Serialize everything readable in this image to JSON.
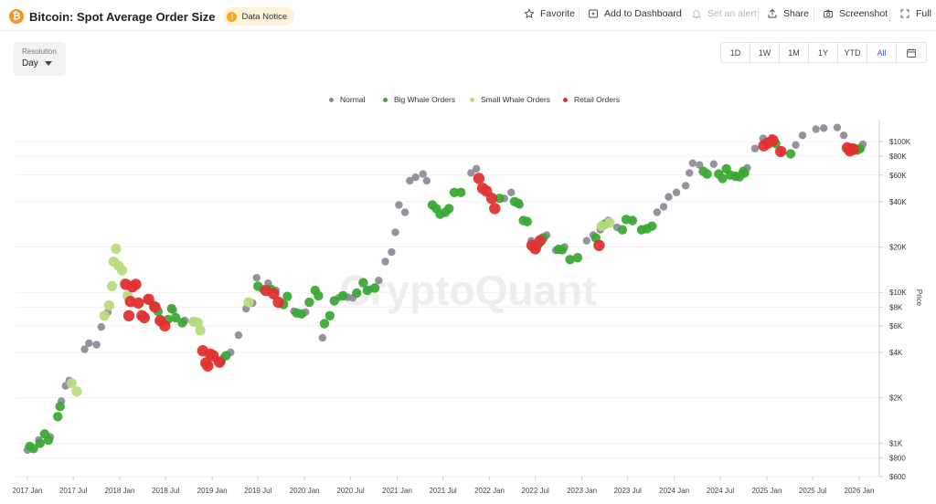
{
  "header": {
    "coin_icon": "bitcoin-icon",
    "coin_symbol": "₿",
    "title": "Bitcoin: Spot Average Order Size",
    "notice_label": "Data Notice",
    "notice_icon": "exclamation-icon"
  },
  "toolbar": {
    "favorite": "Favorite",
    "add_to_dashboard": "Add to Dashboard",
    "set_alert": "Set an alert",
    "share": "Share",
    "screenshot": "Screenshot",
    "full": "Full"
  },
  "resolution": {
    "label": "Resolution",
    "value": "Day"
  },
  "ranges": [
    "1D",
    "1W",
    "1M",
    "1Y",
    "YTD",
    "All"
  ],
  "active_range": "All",
  "watermark": "CryptoQuant",
  "colors": {
    "normal": "#8e8c99",
    "big_whale": "#3aaa35",
    "small_whale": "#b5dc7c",
    "retail": "#e03131",
    "accent": "#4a5bd4",
    "bitcoin": "#f7931a"
  },
  "chart_data": {
    "type": "scatter",
    "title": "Bitcoin: Spot Average Order Size",
    "xlabel": "",
    "ylabel": "Price",
    "y_scale": "log",
    "ylim": [
      600,
      140000
    ],
    "legend_position": "top-center",
    "x_tick_labels": [
      "2017 Jan",
      "2017 Jul",
      "2018 Jan",
      "2018 Jul",
      "2019 Jan",
      "2019 Jul",
      "2020 Jan",
      "2020 Jul",
      "2021 Jan",
      "2021 Jul",
      "2022 Jan",
      "2022 Jul",
      "2023 Jan",
      "2023 Jul",
      "2024 Jan",
      "2024 Jul",
      "2025 Jan",
      "2025 Jul",
      "2026 Jan"
    ],
    "y_ticks": [
      {
        "value": 600,
        "label": "$600"
      },
      {
        "value": 800,
        "label": "$800"
      },
      {
        "value": 1000,
        "label": "$1K"
      },
      {
        "value": 2000,
        "label": "$2K"
      },
      {
        "value": 4000,
        "label": "$4K"
      },
      {
        "value": 6000,
        "label": "$6K"
      },
      {
        "value": 8000,
        "label": "$8K"
      },
      {
        "value": 10000,
        "label": "$10K"
      },
      {
        "value": 20000,
        "label": "$20K"
      },
      {
        "value": 40000,
        "label": "$40K"
      },
      {
        "value": 60000,
        "label": "$60K"
      },
      {
        "value": 80000,
        "label": "$80K"
      },
      {
        "value": 100000,
        "label": "$100K"
      }
    ],
    "grid": true,
    "series": [
      {
        "name": "Normal",
        "color": "#8e8c99",
        "points": [
          [
            "2017-01-01",
            900
          ],
          [
            "2017-02-15",
            1050
          ],
          [
            "2017-04-01",
            1100
          ],
          [
            "2017-05-15",
            1900
          ],
          [
            "2017-06-01",
            2400
          ],
          [
            "2017-06-15",
            2600
          ],
          [
            "2017-08-15",
            4200
          ],
          [
            "2017-09-01",
            4600
          ],
          [
            "2017-10-01",
            4500
          ],
          [
            "2017-10-20",
            5900
          ],
          [
            "2017-11-15",
            7400
          ],
          [
            "2018-04-20",
            8900
          ],
          [
            "2018-06-15",
            6500
          ],
          [
            "2018-08-01",
            7600
          ],
          [
            "2018-09-15",
            6500
          ],
          [
            "2018-10-15",
            6400
          ],
          [
            "2019-01-15",
            3600
          ],
          [
            "2019-02-15",
            3700
          ],
          [
            "2019-03-15",
            4000
          ],
          [
            "2019-04-15",
            5200
          ],
          [
            "2019-05-15",
            7800
          ],
          [
            "2019-06-10",
            8500
          ],
          [
            "2019-06-26",
            12500
          ],
          [
            "2019-07-15",
            10600
          ],
          [
            "2019-08-10",
            11500
          ],
          [
            "2019-09-10",
            10300
          ],
          [
            "2019-11-20",
            7500
          ],
          [
            "2020-01-05",
            7400
          ],
          [
            "2020-03-12",
            5000
          ],
          [
            "2020-05-15",
            9200
          ],
          [
            "2020-06-20",
            9300
          ],
          [
            "2020-07-10",
            9200
          ],
          [
            "2020-09-15",
            10500
          ],
          [
            "2020-10-20",
            12000
          ],
          [
            "2020-11-15",
            16000
          ],
          [
            "2020-12-10",
            18500
          ],
          [
            "2020-12-25",
            25000
          ],
          [
            "2021-01-08",
            38000
          ],
          [
            "2021-02-01",
            34000
          ],
          [
            "2021-02-20",
            55000
          ],
          [
            "2021-03-15",
            58000
          ],
          [
            "2021-04-13",
            61000
          ],
          [
            "2021-04-28",
            55000
          ],
          [
            "2021-11-10",
            66000
          ],
          [
            "2021-10-20",
            62000
          ],
          [
            "2022-03-01",
            42000
          ],
          [
            "2022-03-28",
            46000
          ],
          [
            "2022-05-01",
            38000
          ],
          [
            "2022-06-15",
            22000
          ],
          [
            "2022-08-15",
            24000
          ],
          [
            "2022-09-20",
            19000
          ],
          [
            "2022-10-25",
            20000
          ],
          [
            "2023-01-20",
            22000
          ],
          [
            "2023-02-15",
            24000
          ],
          [
            "2023-03-15",
            26000
          ],
          [
            "2023-04-15",
            30000
          ],
          [
            "2023-05-20",
            27000
          ],
          [
            "2023-10-25",
            34000
          ],
          [
            "2023-11-20",
            37000
          ],
          [
            "2023-12-10",
            43000
          ],
          [
            "2024-01-10",
            46000
          ],
          [
            "2024-02-15",
            51000
          ],
          [
            "2024-03-01",
            62000
          ],
          [
            "2024-03-14",
            72000
          ],
          [
            "2024-04-10",
            70000
          ],
          [
            "2024-06-05",
            71000
          ],
          [
            "2024-10-15",
            67000
          ],
          [
            "2024-11-15",
            90000
          ],
          [
            "2024-12-17",
            105000
          ],
          [
            "2025-01-21",
            106000
          ],
          [
            "2025-03-01",
            86000
          ],
          [
            "2025-04-25",
            95000
          ],
          [
            "2025-05-22",
            110000
          ],
          [
            "2025-07-14",
            121000
          ],
          [
            "2025-08-14",
            123000
          ],
          [
            "2025-10-06",
            124000
          ],
          [
            "2025-11-01",
            110000
          ],
          [
            "2026-01-15",
            96000
          ]
        ]
      },
      {
        "name": "Big Whale Orders",
        "color": "#3aaa35",
        "points": [
          [
            "2017-01-10",
            950
          ],
          [
            "2017-01-25",
            920
          ],
          [
            "2017-02-20",
            1000
          ],
          [
            "2017-03-10",
            1150
          ],
          [
            "2017-03-25",
            1050
          ],
          [
            "2017-05-01",
            1500
          ],
          [
            "2017-05-10",
            1750
          ],
          [
            "2018-05-15",
            8200
          ],
          [
            "2018-06-01",
            7500
          ],
          [
            "2018-07-10",
            6600
          ],
          [
            "2018-07-25",
            7800
          ],
          [
            "2018-08-10",
            6800
          ],
          [
            "2018-09-05",
            6300
          ],
          [
            "2019-02-05",
            3500
          ],
          [
            "2019-02-25",
            3800
          ],
          [
            "2019-07-01",
            11000
          ],
          [
            "2019-08-20",
            10500
          ],
          [
            "2019-10-10",
            8300
          ],
          [
            "2019-10-25",
            9400
          ],
          [
            "2019-12-01",
            7300
          ],
          [
            "2019-12-20",
            7200
          ],
          [
            "2020-01-20",
            8600
          ],
          [
            "2020-02-12",
            10300
          ],
          [
            "2020-02-25",
            9500
          ],
          [
            "2020-03-20",
            6200
          ],
          [
            "2020-04-10",
            7000
          ],
          [
            "2020-04-28",
            8800
          ],
          [
            "2020-06-01",
            9500
          ],
          [
            "2020-07-25",
            9900
          ],
          [
            "2020-08-20",
            11600
          ],
          [
            "2020-09-05",
            10300
          ],
          [
            "2020-10-05",
            10700
          ],
          [
            "2021-05-20",
            38000
          ],
          [
            "2021-06-05",
            36000
          ],
          [
            "2021-06-20",
            33000
          ],
          [
            "2021-07-10",
            34000
          ],
          [
            "2021-07-25",
            36000
          ],
          [
            "2021-08-15",
            46000
          ],
          [
            "2021-09-10",
            46000
          ],
          [
            "2022-02-10",
            42000
          ],
          [
            "2022-04-10",
            40000
          ],
          [
            "2022-04-25",
            39000
          ],
          [
            "2022-05-15",
            30000
          ],
          [
            "2022-05-30",
            29500
          ],
          [
            "2022-07-10",
            20500
          ],
          [
            "2022-08-01",
            23000
          ],
          [
            "2022-10-01",
            19300
          ],
          [
            "2022-10-15",
            19200
          ],
          [
            "2022-11-15",
            16500
          ],
          [
            "2022-12-15",
            17000
          ],
          [
            "2023-02-25",
            23000
          ],
          [
            "2023-04-01",
            28300
          ],
          [
            "2023-06-10",
            26000
          ],
          [
            "2023-06-25",
            30500
          ],
          [
            "2023-07-20",
            30000
          ],
          [
            "2023-08-25",
            26000
          ],
          [
            "2023-09-15",
            26500
          ],
          [
            "2023-10-05",
            27500
          ],
          [
            "2024-04-25",
            63500
          ],
          [
            "2024-05-10",
            61000
          ],
          [
            "2024-06-25",
            61000
          ],
          [
            "2024-07-10",
            57000
          ],
          [
            "2024-07-25",
            66000
          ],
          [
            "2024-08-10",
            60000
          ],
          [
            "2024-08-30",
            59000
          ],
          [
            "2024-09-15",
            58500
          ],
          [
            "2024-09-30",
            63500
          ],
          [
            "2024-10-05",
            62000
          ],
          [
            "2025-02-05",
            97000
          ],
          [
            "2025-04-05",
            83000
          ],
          [
            "2025-11-20",
            88000
          ],
          [
            "2025-12-05",
            91000
          ],
          [
            "2025-12-25",
            88000
          ],
          [
            "2026-01-05",
            90000
          ]
        ]
      },
      {
        "name": "Small Whale Orders",
        "color": "#b5dc7c",
        "points": [
          [
            "2017-06-25",
            2500
          ],
          [
            "2017-07-15",
            2200
          ],
          [
            "2017-11-01",
            7000
          ],
          [
            "2017-11-20",
            8200
          ],
          [
            "2017-12-01",
            11000
          ],
          [
            "2017-12-08",
            16000
          ],
          [
            "2017-12-17",
            19500
          ],
          [
            "2017-12-28",
            15000
          ],
          [
            "2018-01-10",
            14000
          ],
          [
            "2018-01-20",
            11500
          ],
          [
            "2018-02-01",
            9500
          ],
          [
            "2018-10-20",
            6400
          ],
          [
            "2018-11-05",
            6300
          ],
          [
            "2018-11-15",
            5600
          ],
          [
            "2019-05-25",
            8600
          ],
          [
            "2023-03-20",
            27500
          ],
          [
            "2023-04-20",
            29000
          ]
        ]
      },
      {
        "name": "Retail Orders",
        "color": "#e03131",
        "points": [
          [
            "2018-01-25",
            11300
          ],
          [
            "2018-02-06",
            7000
          ],
          [
            "2018-02-12",
            8700
          ],
          [
            "2018-02-20",
            10900
          ],
          [
            "2018-03-05",
            11300
          ],
          [
            "2018-03-15",
            8500
          ],
          [
            "2018-03-30",
            7000
          ],
          [
            "2018-04-08",
            6800
          ],
          [
            "2018-04-25",
            9000
          ],
          [
            "2018-05-20",
            8000
          ],
          [
            "2018-06-10",
            6500
          ],
          [
            "2018-06-28",
            6000
          ],
          [
            "2018-11-25",
            4100
          ],
          [
            "2018-12-07",
            3400
          ],
          [
            "2018-12-15",
            3250
          ],
          [
            "2018-12-24",
            3900
          ],
          [
            "2019-01-05",
            3800
          ],
          [
            "2019-01-30",
            3450
          ],
          [
            "2019-08-01",
            10300
          ],
          [
            "2019-09-01",
            9800
          ],
          [
            "2019-09-20",
            8600
          ],
          [
            "2021-11-20",
            57000
          ],
          [
            "2021-12-05",
            49000
          ],
          [
            "2021-12-20",
            47000
          ],
          [
            "2022-01-10",
            42000
          ],
          [
            "2022-01-22",
            36000
          ],
          [
            "2022-06-18",
            20500
          ],
          [
            "2022-07-01",
            19500
          ],
          [
            "2022-07-20",
            22000
          ],
          [
            "2023-03-10",
            20500
          ],
          [
            "2024-12-20",
            94000
          ],
          [
            "2025-01-05",
            98000
          ],
          [
            "2025-01-25",
            102000
          ],
          [
            "2025-02-25",
            86000
          ],
          [
            "2025-11-15",
            91000
          ],
          [
            "2025-11-25",
            87000
          ],
          [
            "2025-12-10",
            89000
          ]
        ]
      }
    ]
  }
}
